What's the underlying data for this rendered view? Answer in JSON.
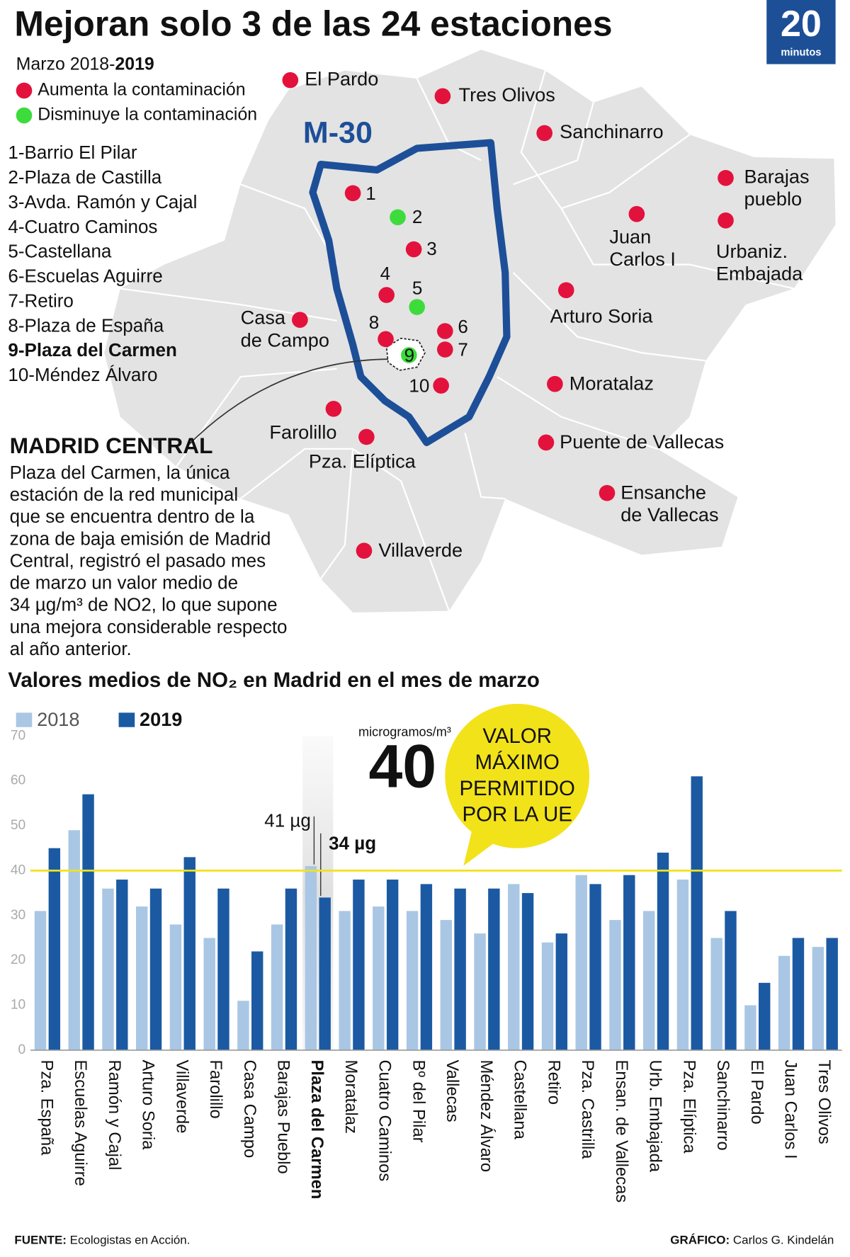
{
  "header": {
    "title": "Mejoran solo 3 de las 24 estaciones",
    "period_prefix": "Marzo 2018-",
    "period_bold": "2019",
    "logo_number": "20",
    "logo_word": "minutos"
  },
  "legend": [
    {
      "label": "Aumenta la contaminación",
      "color": "#e3123c"
    },
    {
      "label": "Disminuye la contaminación",
      "color": "#3ddc3c"
    }
  ],
  "station_list": [
    {
      "text": "1-Barrio El Pilar"
    },
    {
      "text": "2-Plaza de Castilla"
    },
    {
      "text": "3-Avda. Ramón y Cajal"
    },
    {
      "text": "4-Cuatro Caminos"
    },
    {
      "text": "5-Castellana"
    },
    {
      "text": "6-Escuelas Aguirre"
    },
    {
      "text": "7-Retiro"
    },
    {
      "text": "8-Plaza de España"
    },
    {
      "text": "9-Plaza del Carmen",
      "bold": true
    },
    {
      "text": "10-Méndez Álvaro"
    }
  ],
  "map": {
    "ring_label": "M-30",
    "stations": [
      {
        "lines": [
          "El Pardo"
        ],
        "color": "#e3123c"
      },
      {
        "lines": [
          "Tres Olivos"
        ],
        "color": "#e3123c"
      },
      {
        "lines": [
          "Sanchinarro"
        ],
        "color": "#e3123c"
      },
      {
        "lines": [
          "Barajas",
          "pueblo"
        ],
        "color": "#e3123c"
      },
      {
        "lines": [
          "Urbaniz.",
          "Embajada"
        ],
        "color": "#e3123c"
      },
      {
        "lines": [
          "Juan",
          "Carlos I"
        ],
        "color": "#e3123c"
      },
      {
        "lines": [
          "Arturo Soria"
        ],
        "color": "#e3123c"
      },
      {
        "lines": [
          "Casa",
          "de Campo"
        ],
        "color": "#e3123c"
      },
      {
        "lines": [
          "Moratalaz"
        ],
        "color": "#e3123c"
      },
      {
        "lines": [
          "Farolillo"
        ],
        "color": "#e3123c"
      },
      {
        "lines": [
          "Pza. Elíptica"
        ],
        "color": "#e3123c"
      },
      {
        "lines": [
          "Puente de Vallecas"
        ],
        "color": "#e3123c"
      },
      {
        "lines": [
          "Ensanche",
          "de Vallecas"
        ],
        "color": "#e3123c"
      },
      {
        "lines": [
          "Villaverde"
        ],
        "color": "#e3123c"
      }
    ],
    "numbered": [
      {
        "label": "1",
        "color": "#e3123c"
      },
      {
        "label": "2",
        "color": "#3ddc3c"
      },
      {
        "label": "3",
        "color": "#e3123c"
      },
      {
        "label": "4",
        "color": "#e3123c"
      },
      {
        "label": "5",
        "color": "#3ddc3c"
      },
      {
        "label": "6",
        "color": "#e3123c"
      },
      {
        "label": "7",
        "color": "#e3123c"
      },
      {
        "label": "8",
        "color": "#e3123c"
      },
      {
        "label": "9",
        "color": "#3ddc3c"
      },
      {
        "label": "10",
        "color": "#e3123c"
      }
    ]
  },
  "note": {
    "title": "MADRID CENTRAL",
    "lines": [
      "Plaza del Carmen, la única",
      "estación de la red municipal",
      "que se encuentra dentro de la",
      "zona de baja emisión de Madrid",
      "Central, registró el pasado mes",
      "de marzo un valor medio de",
      "34 µg/m³ de NO2, lo que supone",
      "una mejora considerable respecto",
      "al año anterior."
    ]
  },
  "chart_data": {
    "type": "bar",
    "title": "Valores medios de NO₂ en Madrid en el mes de marzo",
    "categories": [
      "Pza. España",
      "Escuelas Aguirre",
      "Ramón y Cajal",
      "Arturo Soria",
      "Villaverde",
      "Farolillo",
      "Casa Campo",
      "Barajas Pueblo",
      "Plaza del Carmen",
      "Moratalaz",
      "Cuatro Caminos",
      "Bº del Pilar",
      "Vallecas",
      "Méndez Álvaro",
      "Castellana",
      "Retiro",
      "Pza. Castrilla",
      "Ensan. de Vallecas",
      "Urb. Embajada",
      "Pza. Elíptica",
      "Sanchinarro",
      "El Pardo",
      "Juan Carlos I",
      "Tres Olivos"
    ],
    "series": [
      {
        "name": "2018",
        "color": "#a9c7e4",
        "values": [
          31,
          49,
          36,
          32,
          28,
          25,
          11,
          28,
          41,
          31,
          32,
          31,
          29,
          26,
          37,
          24,
          39,
          29,
          31,
          38,
          25,
          10,
          21,
          23
        ],
        "value_labels": [
          null,
          null,
          null,
          null,
          null,
          null,
          null,
          null,
          "41 µg",
          null,
          null,
          null,
          null,
          null,
          null,
          null,
          null,
          null,
          null,
          null,
          null,
          null,
          null,
          null
        ]
      },
      {
        "name": "2019",
        "color": "#1b5aa3",
        "values": [
          45,
          57,
          38,
          36,
          43,
          36,
          22,
          36,
          34,
          38,
          38,
          37,
          36,
          36,
          35,
          26,
          37,
          39,
          44,
          61,
          31,
          15,
          25,
          25
        ],
        "value_labels": [
          null,
          null,
          null,
          null,
          null,
          null,
          null,
          null,
          "34 µg",
          null,
          null,
          null,
          null,
          null,
          null,
          null,
          null,
          null,
          null,
          null,
          null,
          null,
          null,
          null
        ]
      }
    ],
    "ylim": [
      0,
      70
    ],
    "yticks": [
      0,
      10,
      20,
      30,
      40,
      50,
      60,
      70
    ],
    "grid": false,
    "highlight": 8,
    "limit_line": 40,
    "limit_color": "#f2e21a",
    "limit_unit": "microgramos/m³",
    "limit_label_lines": [
      "VALOR",
      "MÁXIMO",
      "PERMITIDO",
      "POR LA UE"
    ]
  },
  "footer": {
    "source_label": "FUENTE:",
    "source": "Ecologistas en Acción.",
    "credit_label": "GRÁFICO:",
    "credit": "Carlos G. Kindelán"
  }
}
